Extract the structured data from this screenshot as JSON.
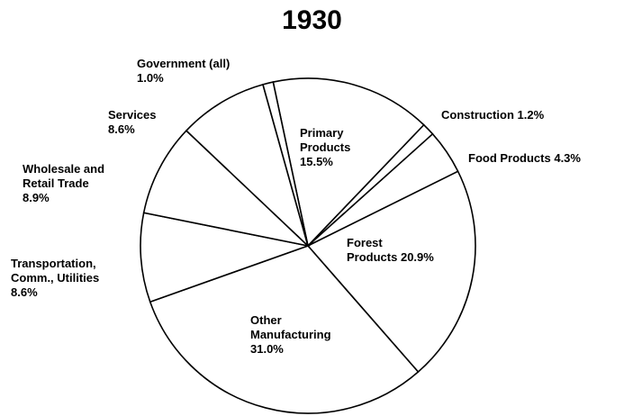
{
  "chart_data": {
    "type": "pie",
    "title": "1930",
    "categories": [
      "Primary Products",
      "Construction",
      "Food Products",
      "Forest Products",
      "Other Manufacturing",
      "Transportation, Comm., Utilities",
      "Wholesale and Retail Trade",
      "Services",
      "Government (all)"
    ],
    "values": [
      15.5,
      1.2,
      4.3,
      20.9,
      31.0,
      8.6,
      8.9,
      8.6,
      1.0
    ],
    "value_labels": [
      "15.5%",
      "1.2%",
      "4.3%",
      "20.9%",
      "31.0%",
      "8.6%",
      "8.9%",
      "8.6%",
      "1.0%"
    ],
    "color": "#ffffff",
    "edge_color": "#000000"
  }
}
